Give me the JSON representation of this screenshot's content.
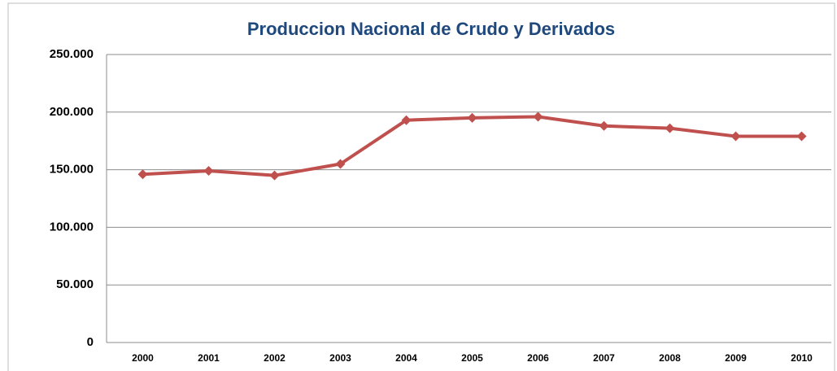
{
  "chart_data": {
    "type": "line",
    "title": "Produccion Nacional de Crudo y Derivados",
    "categories": [
      "2000",
      "2001",
      "2002",
      "2003",
      "2004",
      "2005",
      "2006",
      "2007",
      "2008",
      "2009",
      "2010"
    ],
    "values": [
      146000,
      149000,
      145000,
      155000,
      193000,
      195000,
      196000,
      188000,
      186000,
      179000,
      179000
    ],
    "color": "#c0504d",
    "ylim": [
      0,
      250000
    ],
    "yticks": [
      0,
      {
        "value": 50000,
        "label": "50.000"
      },
      {
        "value": 100000,
        "label": "100.000"
      },
      {
        "value": 150000,
        "label": "150.000"
      },
      {
        "value": 200000,
        "label": "200.000"
      },
      {
        "value": 250000,
        "label": "250.000"
      }
    ],
    "grid": true
  }
}
